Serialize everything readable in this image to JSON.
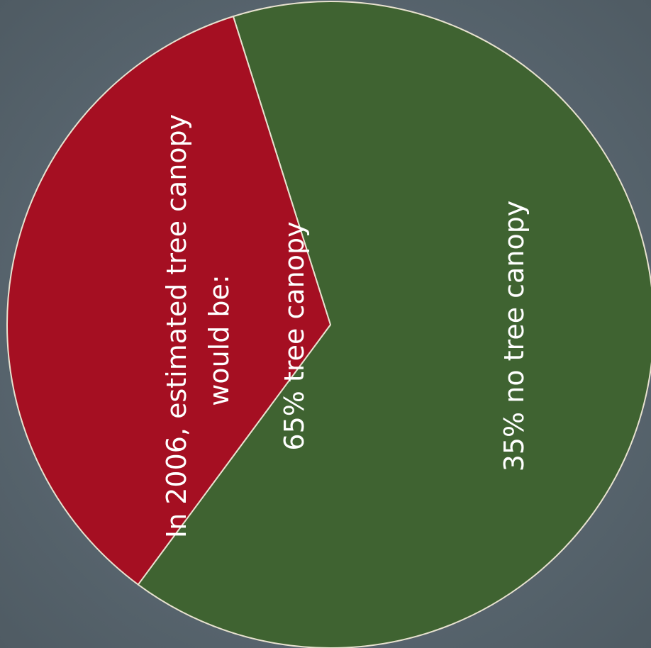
{
  "colors": {
    "background": "#59666f",
    "tree_canopy": "#3f6331",
    "no_tree_canopy": "#a50f22",
    "outline": "#e8e2d0"
  },
  "chart_data": {
    "type": "pie",
    "title": "",
    "annotation_lines": [
      "In 2006, estimated tree canopy",
      "would be:"
    ],
    "slices": [
      {
        "label": "65% tree canopy",
        "value": 65,
        "color": "#3f6331"
      },
      {
        "label": "35% no tree canopy",
        "value": 35,
        "color": "#a50f22"
      }
    ]
  }
}
